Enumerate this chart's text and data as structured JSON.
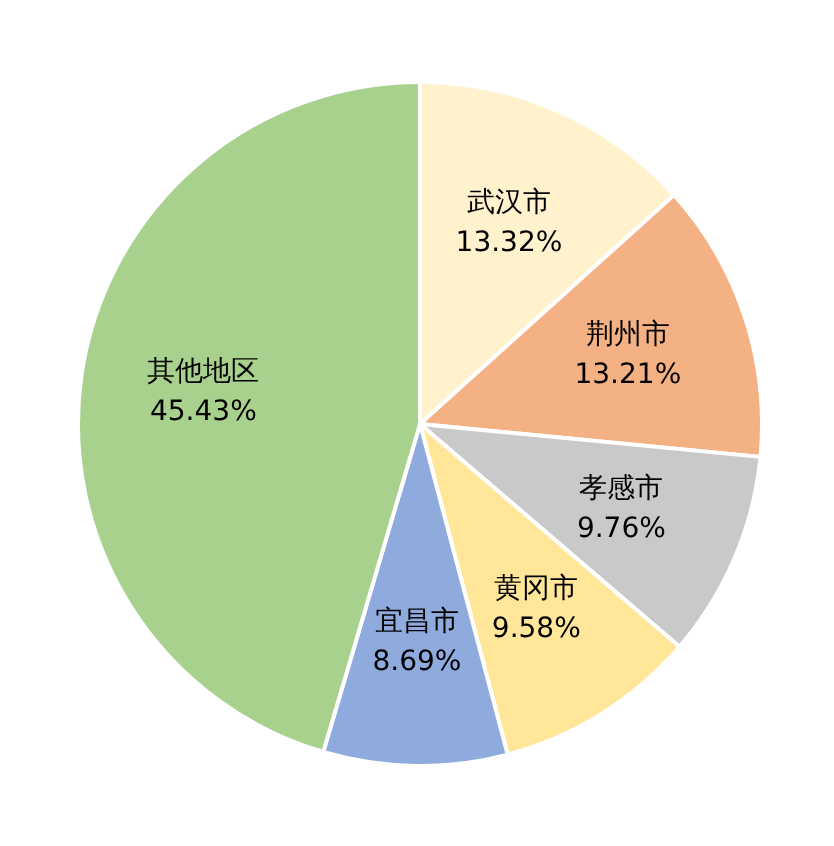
{
  "chart_data": {
    "type": "pie",
    "categories": [
      "武汉市",
      "荆州市",
      "孝感市",
      "黄冈市",
      "宜昌市",
      "其他地区"
    ],
    "values": [
      13.32,
      13.21,
      9.76,
      9.58,
      8.69,
      45.43
    ],
    "value_labels": [
      "13.32%",
      "13.21%",
      "9.76%",
      "9.58%",
      "8.69%",
      "45.43%"
    ],
    "colors": [
      "#fff2cc",
      "#f4b183",
      "#c9c9c9",
      "#ffe699",
      "#8faadc",
      "#a9d18e"
    ],
    "legend": false
  }
}
